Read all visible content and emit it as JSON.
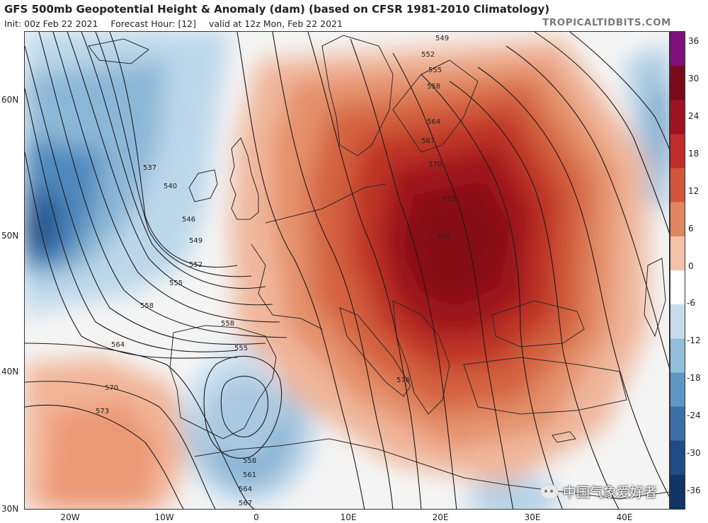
{
  "header": {
    "title": "GFS 500mb Geopotential Height & Anomaly (dam) (based on CFSR 1981-2010 Climatology)",
    "init": "Init: 00z Feb 22 2021",
    "forecast_hour": "Forecast Hour: [12]",
    "valid": "valid at 12z Mon, Feb 22 2021",
    "brand": "TROPICALTIDBITS.COM"
  },
  "axes": {
    "lat_labels": [
      "60N",
      "50N",
      "40N",
      "30N"
    ],
    "lon_labels": [
      "20W",
      "10W",
      "0",
      "10E",
      "20E",
      "30E",
      "40E"
    ]
  },
  "colorbar": {
    "labels": [
      "36",
      "30",
      "24",
      "18",
      "12",
      "6",
      "0",
      "-6",
      "-12",
      "-18",
      "-24",
      "-30",
      "-36"
    ],
    "colors": [
      "#7f0f7a",
      "#7a0a1a",
      "#9d1420",
      "#c02a2a",
      "#d4553a",
      "#e08560",
      "#f3c2a8",
      "#ffffff",
      "#c6dcec",
      "#94bdd9",
      "#5f97c4",
      "#3a6fa8",
      "#1f4b86",
      "#123466"
    ]
  },
  "contour_labels": [
    "549",
    "552",
    "555",
    "558",
    "564",
    "567",
    "570",
    "573",
    "576",
    "537",
    "540",
    "546",
    "549",
    "552",
    "555",
    "558",
    "564",
    "570",
    "573",
    "558",
    "555",
    "558",
    "561",
    "564",
    "567",
    "576"
  ],
  "watermark": {
    "text": "中国气象爱好者",
    "icon": "wechat-icon"
  }
}
